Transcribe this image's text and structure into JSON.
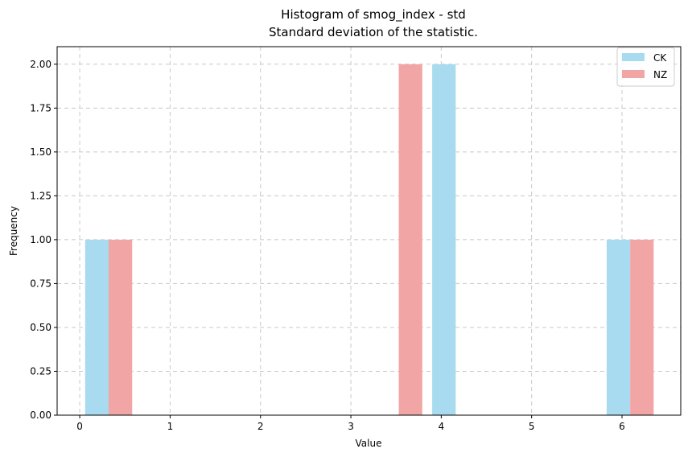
{
  "chart_data": {
    "type": "bar",
    "title": "Histogram of smog_index - std",
    "subtitle": "Standard deviation of the statistic.",
    "xlabel": "Value",
    "ylabel": "Frequency",
    "xlim": [
      -0.25,
      6.65
    ],
    "ylim": [
      0,
      2.1
    ],
    "xticks": [
      "0",
      "1",
      "2",
      "3",
      "4",
      "5",
      "6"
    ],
    "yticks": [
      "0.00",
      "0.25",
      "0.50",
      "0.75",
      "1.00",
      "1.25",
      "1.50",
      "1.75",
      "2.00"
    ],
    "grid": true,
    "legend_position": "top-right",
    "series": [
      {
        "name": "CK",
        "color": "#a8dbef",
        "bars": [
          {
            "x0": 0.06,
            "x1": 0.32,
            "value": 1
          },
          {
            "x0": 3.9,
            "x1": 4.16,
            "value": 2
          },
          {
            "x0": 5.83,
            "x1": 6.09,
            "value": 1
          }
        ]
      },
      {
        "name": "NZ",
        "color": "#f2a5a5",
        "bars": [
          {
            "x0": 0.32,
            "x1": 0.58,
            "value": 1
          },
          {
            "x0": 3.53,
            "x1": 3.79,
            "value": 2
          },
          {
            "x0": 6.09,
            "x1": 6.35,
            "value": 1
          }
        ]
      }
    ]
  }
}
